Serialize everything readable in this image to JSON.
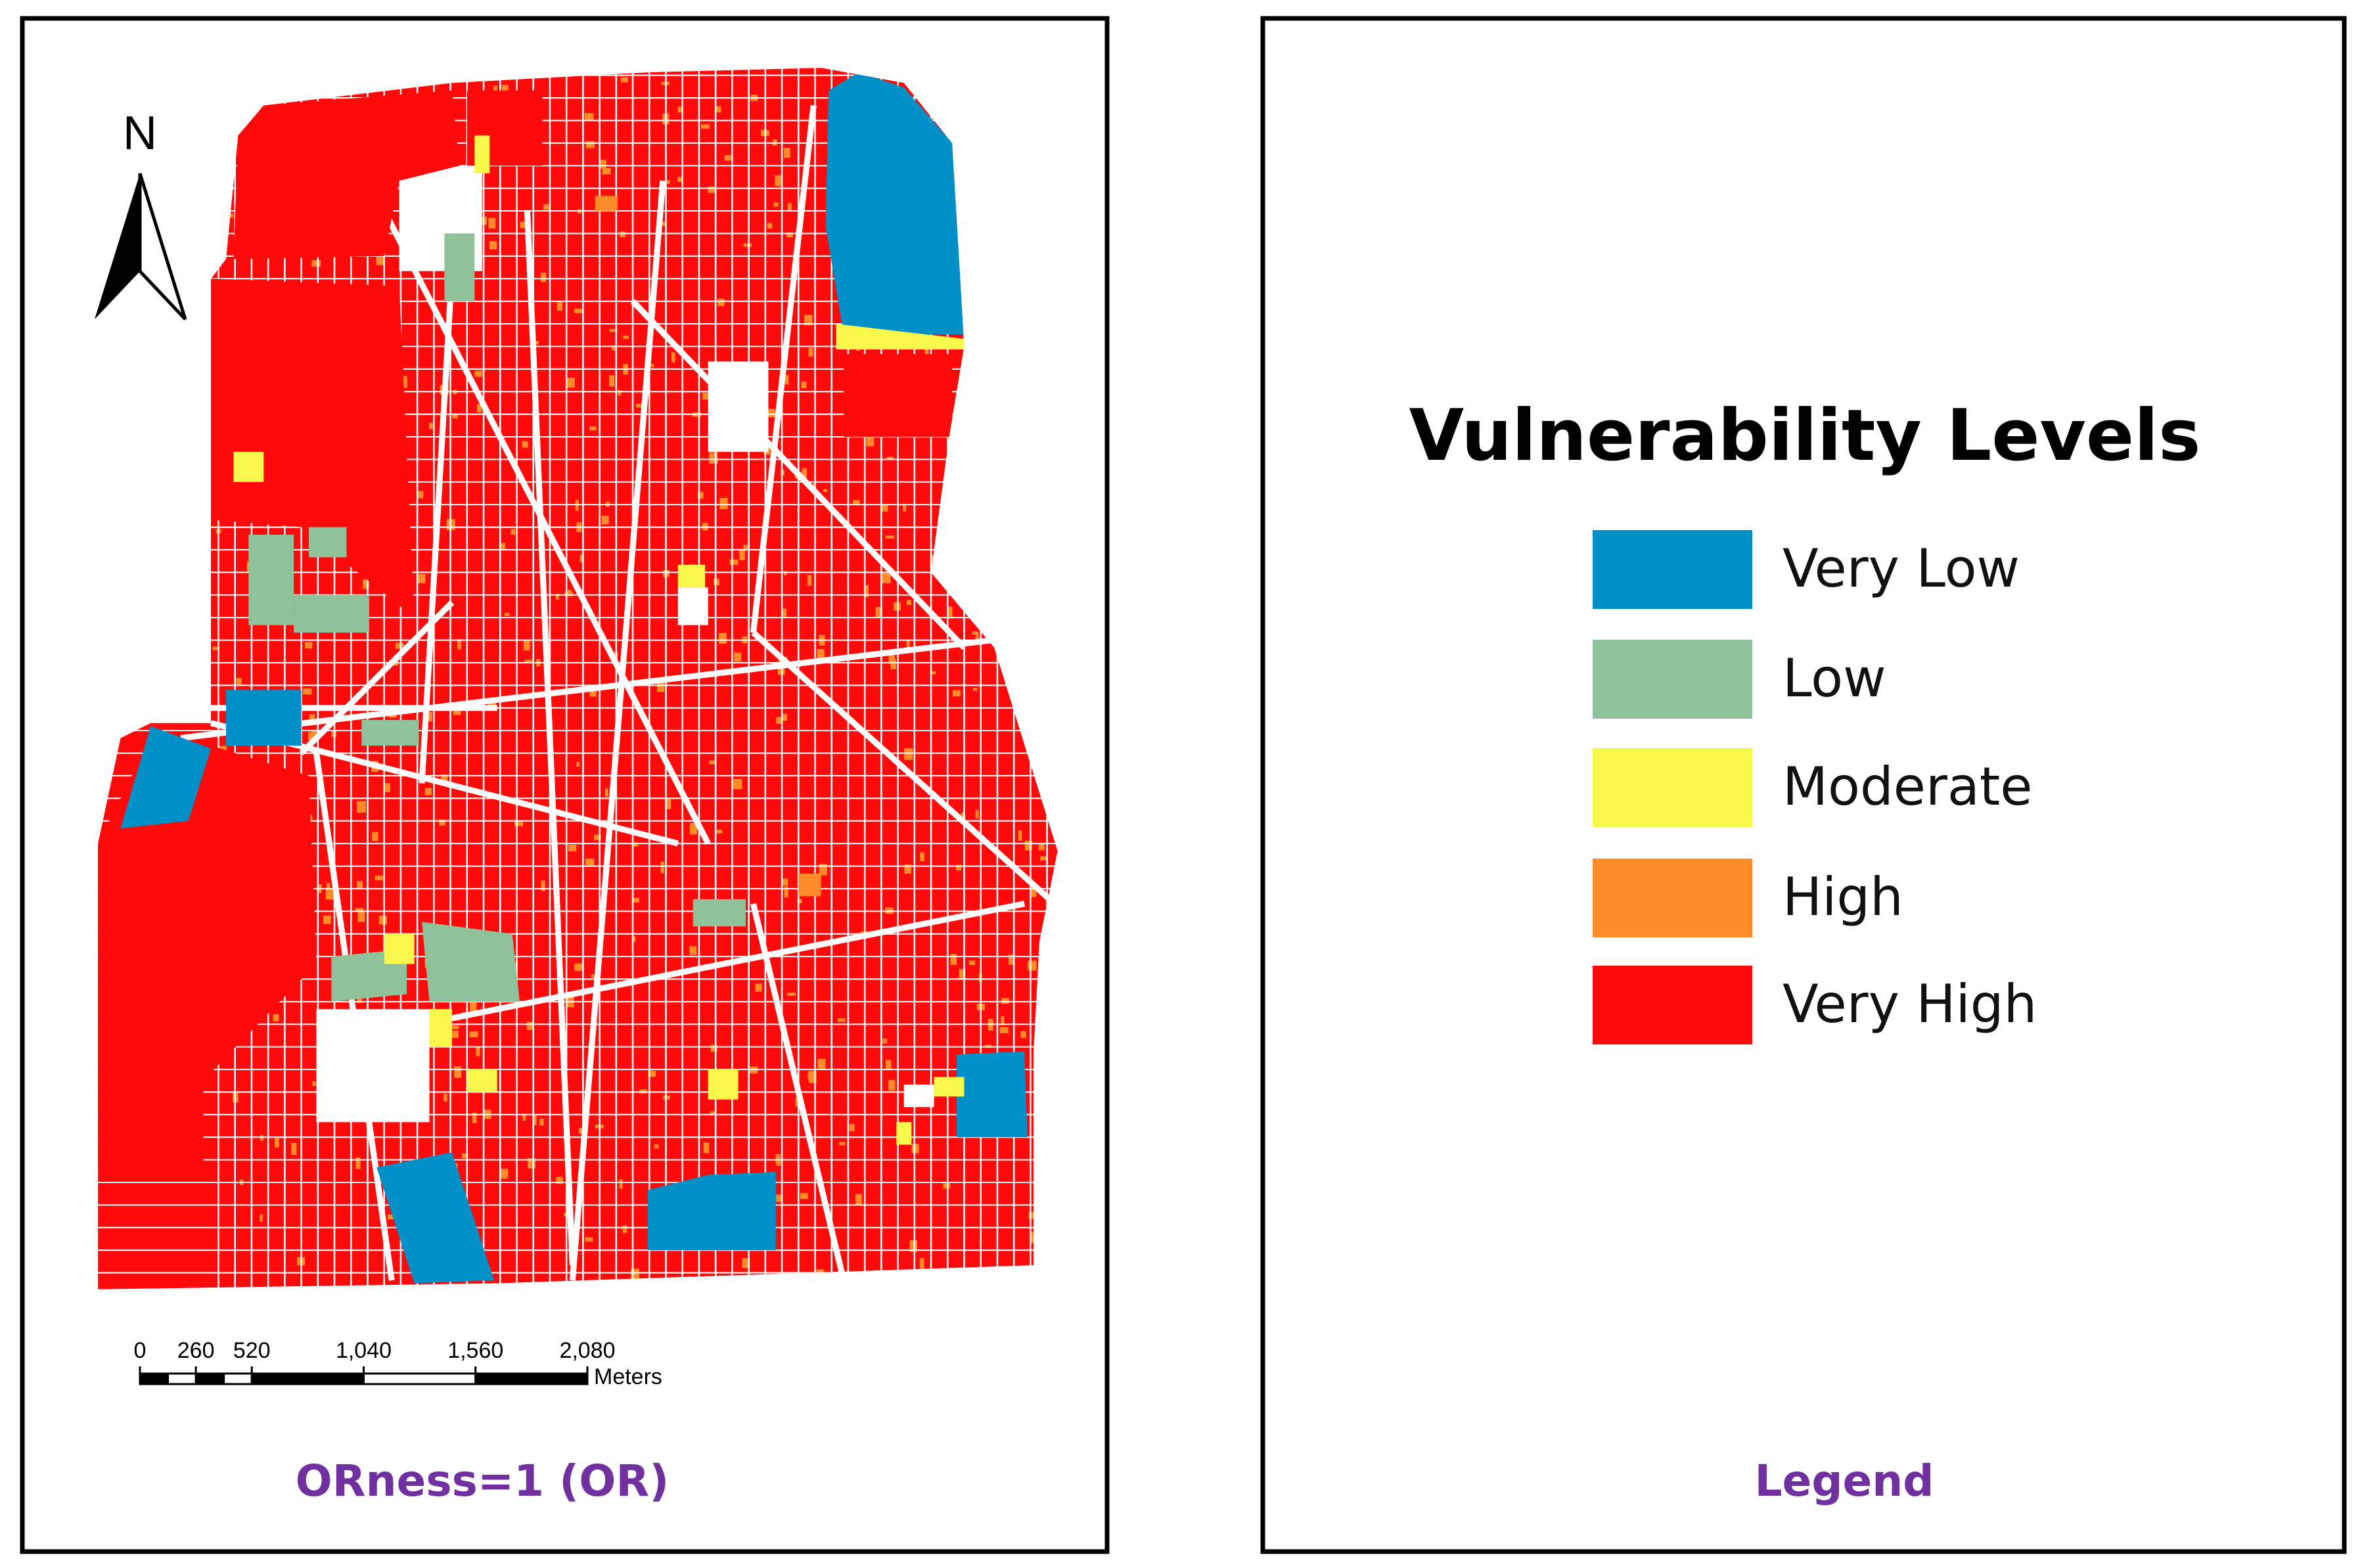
{
  "map_panel": {
    "north_label": "N",
    "scale_bar": {
      "ticks": [
        0,
        260,
        520,
        {
          "value": 1040,
          "label": "1,040"
        },
        {
          "value": 1560,
          "label": "1,560"
        },
        {
          "value": 2080,
          "label": "2,080"
        }
      ],
      "unit": "Meters"
    },
    "caption": "ORness=1 (OR)"
  },
  "legend_panel": {
    "title": "Vulnerability Levels",
    "items": [
      {
        "label": "Very Low",
        "color": "#0090c8"
      },
      {
        "label": "Low",
        "color": "#8fc19a"
      },
      {
        "label": "Moderate",
        "color": "#f8f84c"
      },
      {
        "label": "High",
        "color": "#ff8c28"
      },
      {
        "label": "Very High",
        "color": "#ff0a0a"
      }
    ],
    "caption": "Legend"
  }
}
